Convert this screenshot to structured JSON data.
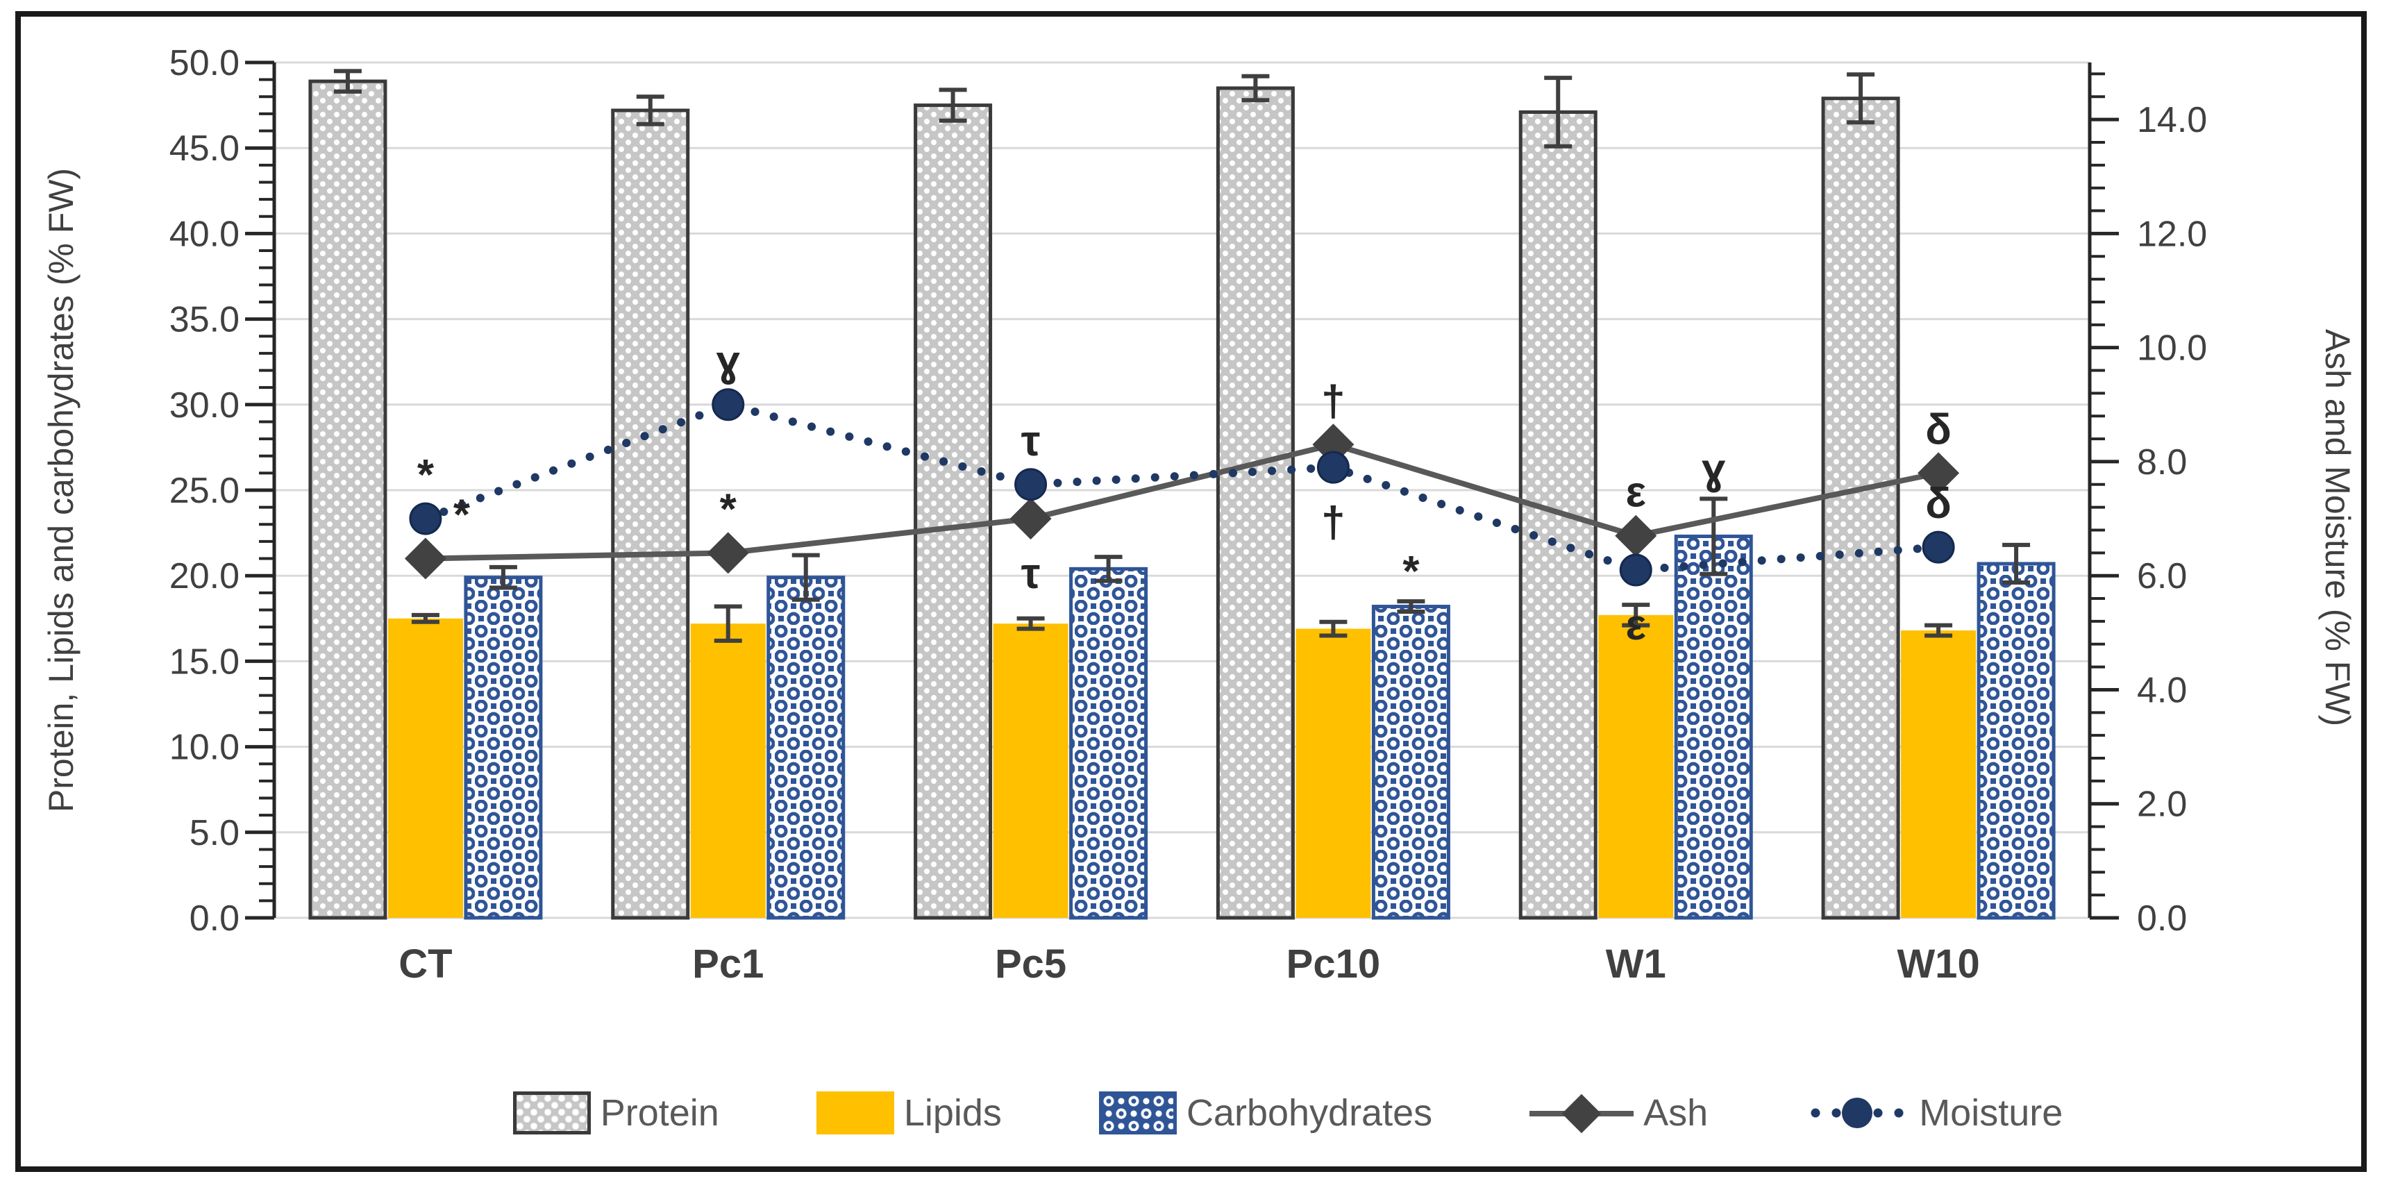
{
  "chart_data": {
    "type": "combo-bar-line",
    "title": "",
    "categories": [
      "CT",
      "Pc1",
      "Pc5",
      "Pc10",
      "W1",
      "W10"
    ],
    "left_axis": {
      "title": "Protein, Lipids and carbohydrates (% FW)",
      "min": 0,
      "max": 50,
      "major_step": 5,
      "minor_step": 1,
      "tick_labels": [
        "0.0",
        "5.0",
        "10.0",
        "15.0",
        "20.0",
        "25.0",
        "30.0",
        "35.0",
        "40.0",
        "45.0",
        "50.0"
      ]
    },
    "right_axis": {
      "title": "Ash and Moisture (% FW)",
      "min": 0,
      "max": 15,
      "labeled_tick_max": 14,
      "major_step": 2,
      "minor_step": 0.4,
      "tick_labels": [
        "0.0",
        "2.0",
        "4.0",
        "6.0",
        "8.0",
        "10.0",
        "12.0",
        "14.0"
      ]
    },
    "grid": "horizontal-major",
    "legend_position": "bottom",
    "series": [
      {
        "name": "Protein",
        "type": "bar",
        "axis": "left",
        "pattern": "gray-dots",
        "values": [
          48.9,
          47.2,
          47.5,
          48.5,
          47.1,
          47.9
        ],
        "errors": [
          0.6,
          0.8,
          0.9,
          0.7,
          2.0,
          1.4
        ]
      },
      {
        "name": "Lipids",
        "type": "bar",
        "axis": "left",
        "pattern": "solid-gold",
        "values": [
          17.5,
          17.2,
          17.2,
          16.9,
          17.7,
          16.8
        ],
        "errors": [
          0.2,
          1.0,
          0.3,
          0.4,
          0.6,
          0.3
        ]
      },
      {
        "name": "Carbohydrates",
        "type": "bar",
        "axis": "left",
        "pattern": "blue-lattice",
        "values": [
          19.9,
          19.9,
          20.4,
          18.2,
          22.3,
          20.7
        ],
        "errors": [
          0.6,
          1.3,
          0.7,
          0.3,
          2.2,
          1.1
        ]
      },
      {
        "name": "Ash",
        "type": "line",
        "axis": "right",
        "marker": "diamond",
        "values": [
          6.3,
          6.4,
          7.0,
          8.3,
          6.7,
          7.8
        ]
      },
      {
        "name": "Moisture",
        "type": "dotted-line",
        "axis": "right",
        "marker": "circle",
        "values": [
          7.0,
          9.0,
          7.6,
          7.9,
          6.1,
          6.5
        ]
      }
    ],
    "annotations": [
      {
        "category": "CT",
        "symbol": "*",
        "series": "Moisture",
        "placement": "above",
        "dx": 0
      },
      {
        "category": "CT",
        "symbol": "*",
        "series": "Ash",
        "placement": "above",
        "dx": 52
      },
      {
        "category": "Pc1",
        "symbol": "ɣ",
        "series": "Moisture",
        "placement": "above",
        "dx": 0
      },
      {
        "category": "Pc1",
        "symbol": "*",
        "series": "Ash",
        "placement": "above",
        "dx": 0
      },
      {
        "category": "Pc5",
        "symbol": "τ",
        "series": "Moisture",
        "placement": "above",
        "dx": 0
      },
      {
        "category": "Pc5",
        "symbol": "τ",
        "series": "Ash",
        "placement": "below",
        "dx": 0
      },
      {
        "category": "Pc10",
        "symbol": "†",
        "series": "Ash",
        "placement": "above",
        "dx": 0
      },
      {
        "category": "Pc10",
        "symbol": "†",
        "series": "Moisture",
        "placement": "below",
        "dx": 0
      },
      {
        "category": "Pc10",
        "symbol": "*",
        "series": "Carbohydrates",
        "placement": "above",
        "dx": 0
      },
      {
        "category": "W1",
        "symbol": "ε",
        "series": "Ash",
        "placement": "above",
        "dx": 0
      },
      {
        "category": "W1",
        "symbol": "ε",
        "series": "Moisture",
        "placement": "below",
        "dx": 0
      },
      {
        "category": "W1",
        "symbol": "ɣ",
        "series": "Carbohydrates",
        "placement": "above",
        "dx": 0
      },
      {
        "category": "W10",
        "symbol": "δ",
        "series": "Ash",
        "placement": "above",
        "dx": 0
      },
      {
        "category": "W10",
        "symbol": "δ",
        "series": "Moisture",
        "placement": "above",
        "dx": 0
      }
    ],
    "colors": {
      "protein_fill": "#C6C6C6",
      "protein_border": "#3A3A3A",
      "lipids_fill": "#FFC000",
      "carb_blue": "#2F5597",
      "ash_line": "#595959",
      "ash_marker": "#424242",
      "moisture": "#1F3864",
      "grid": "#D9D9D9",
      "axis": "#262626",
      "error_bar": "#3F3F3F",
      "text": "#404040",
      "annotation": "#262626",
      "frame": "#1A1A1A"
    }
  },
  "legend": {
    "items": [
      "Protein",
      "Lipids",
      "Carbohydrates",
      "Ash",
      "Moisture"
    ]
  }
}
